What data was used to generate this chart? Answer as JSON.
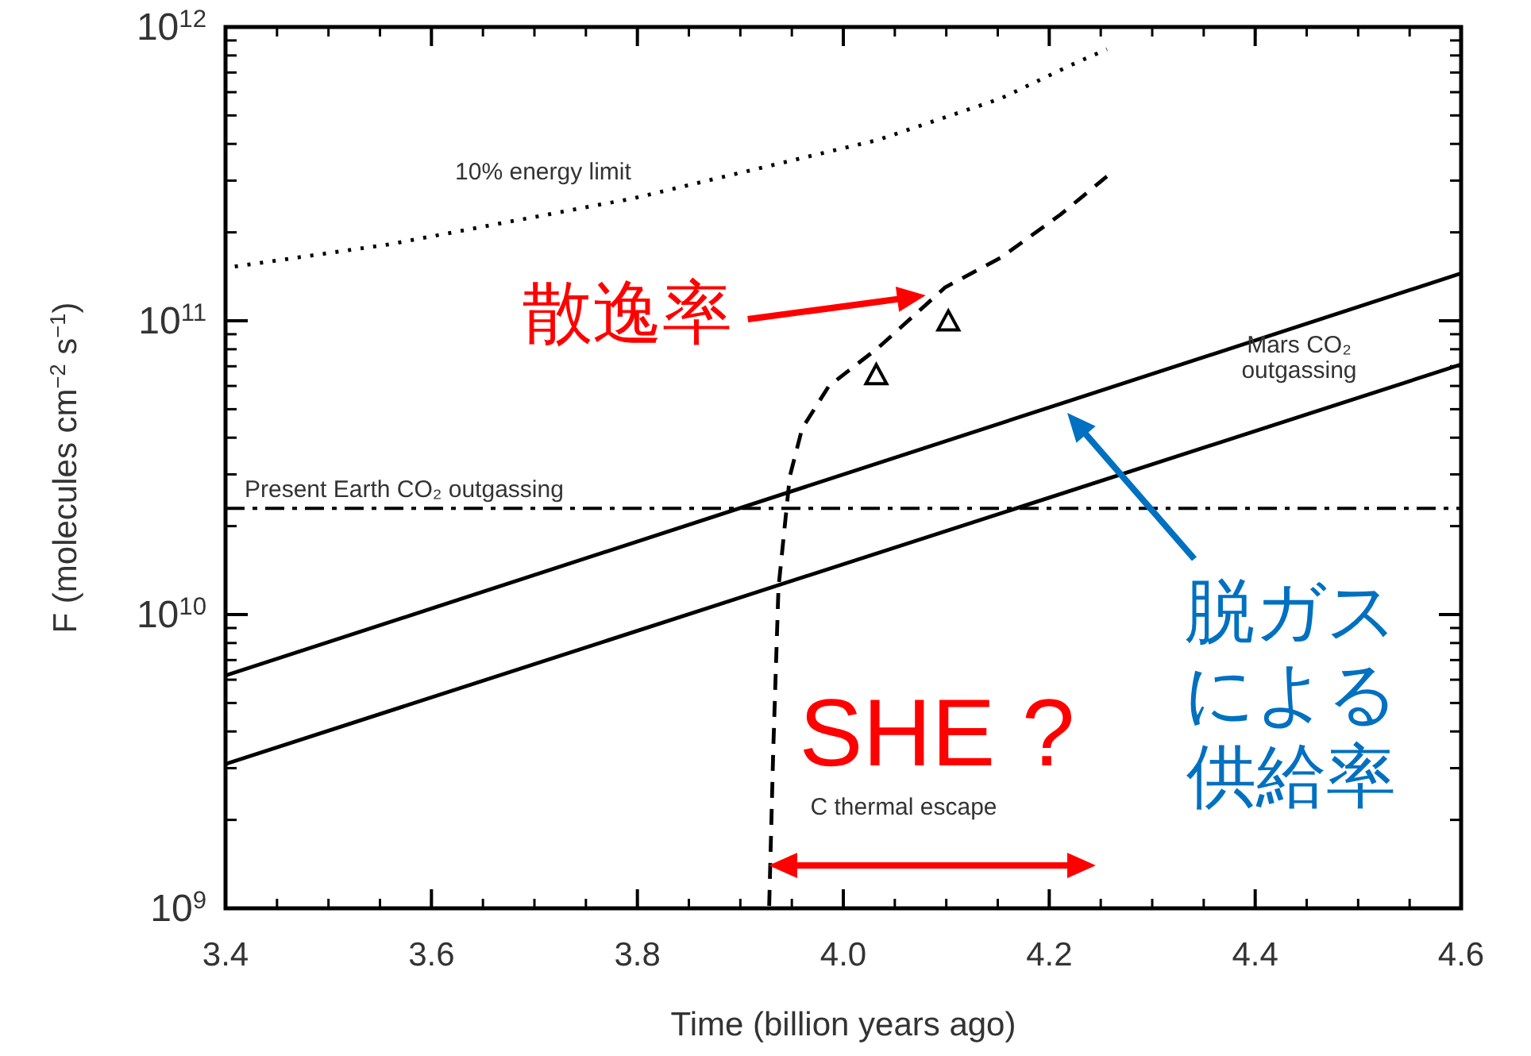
{
  "chart_data": {
    "type": "line",
    "xlabel": "Time (billion years ago)",
    "ylabel": "F (molecules cm$^{−2}$ s$^{−1}$)",
    "xlim": [
      3.4,
      4.6
    ],
    "ylim": [
      1000000000.0,
      1000000000000.0
    ],
    "log": "y",
    "grid": false,
    "xticks": [
      3.4,
      3.6,
      3.8,
      {
        "value": 4.0,
        "label": "4.0"
      },
      4.2,
      4.4,
      4.6
    ],
    "yticks": [
      {
        "value": 1000000000.0,
        "label": "10$^{9}$"
      },
      {
        "value": 10000000000.0,
        "label": "10$^{10}$"
      },
      {
        "value": 100000000000.0,
        "label": "10$^{11}$"
      },
      {
        "value": 1000000000000.0,
        "label": "10$^{12}$"
      }
    ],
    "series": [
      {
        "color": "#000000",
        "line_style": "dotted",
        "x": [
          3.409,
          3.559,
          3.796,
          4.034,
          4.153,
          4.224,
          4.256
        ],
        "values": [
          153000000000.0,
          182000000000.0,
          261000000000.0,
          413000000000.0,
          571000000000.0,
          750000000000.0,
          840000000000.0
        ]
      },
      {
        "color": "#000000",
        "line_style": "dashed",
        "x": [
          3.928,
          3.932,
          3.937,
          3.948,
          3.96,
          3.986,
          4.034,
          4.099,
          4.153,
          4.211,
          4.256
        ],
        "values": [
          1020000000.0,
          3500000000.0,
          12300000000.0,
          29500000000.0,
          43000000000.0,
          60000000000.0,
          81000000000.0,
          130000000000.0,
          164000000000.0,
          230000000000.0,
          310000000000.0
        ]
      },
      {
        "color": "#000000",
        "line_style": "solid",
        "x": [
          3.4,
          4.6
        ],
        "values": [
          6200000000.0,
          145000000000.0
        ]
      },
      {
        "color": "#000000",
        "line_style": "solid",
        "x": [
          3.4,
          4.6
        ],
        "values": [
          3100000000.0,
          71000000000.0
        ]
      },
      {
        "type": "scatter",
        "color": "#000000",
        "marker": "triangle",
        "x": [
          4.032,
          4.102
        ],
        "values": [
          65000000000.0,
          99000000000.0
        ]
      }
    ],
    "ref_lines": [
      {
        "axis": "y",
        "value": 23000000000.0,
        "label": "Present Earth CO₂ outgassing",
        "line_style": "dashdot",
        "color": "#000000"
      }
    ],
    "annotations": [
      "10% energy limit",
      "Mars CO₂ outgassing",
      "C thermal escape",
      {
        "text": "散逸率",
        "x": 4.08,
        "y": 122000000000.0
      },
      "脱ガスによる供給率",
      "SHE ?"
    ]
  }
}
